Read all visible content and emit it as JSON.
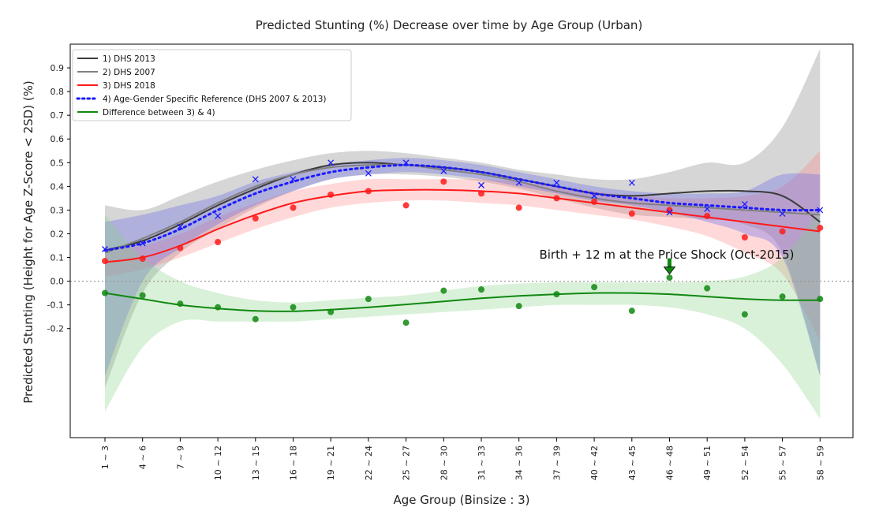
{
  "chart_data": {
    "type": "line",
    "title": "Predicted Stunting (%) Decrease over time by Age Group (Urban)",
    "xlabel": "Age Group (Binsize : 3)",
    "ylabel": "Predicted Stunting (Height for Age Z-Score < 2SD) (%)",
    "categories": [
      "1 ~ 3",
      "4 ~ 6",
      "7 ~ 9",
      "10 ~ 12",
      "13 ~ 15",
      "16 ~ 18",
      "19 ~ 21",
      "22 ~ 24",
      "25 ~ 27",
      "28 ~ 30",
      "31 ~ 33",
      "34 ~ 36",
      "37 ~ 39",
      "40 ~ 42",
      "43 ~ 45",
      "46 ~ 48",
      "49 ~ 51",
      "52 ~ 54",
      "55 ~ 57",
      "58 ~ 59"
    ],
    "yticks": [
      "0.9",
      "0.8",
      "0.7",
      "0.6",
      "0.5",
      "0.4",
      "0.3",
      "0.2",
      "0.1",
      "0.0",
      "-0.1",
      "-0.2"
    ],
    "ytick_values": [
      0.9,
      0.8,
      0.7,
      0.6,
      0.5,
      0.4,
      0.3,
      0.2,
      0.1,
      0.0,
      -0.1,
      -0.2
    ],
    "ylim": [
      -0.66,
      1.0
    ],
    "grid": false,
    "legend_position": "top-left",
    "reference_line": {
      "y": 0.0,
      "style": "dotted",
      "color": "#999999"
    },
    "series": [
      {
        "name": "1) DHS 2013",
        "color": "#3a3a3a",
        "style": "solid",
        "width": 2,
        "values": [
          0.13,
          0.17,
          0.24,
          0.32,
          0.39,
          0.45,
          0.49,
          0.5,
          0.49,
          0.48,
          0.46,
          0.43,
          0.4,
          0.37,
          0.36,
          0.37,
          0.38,
          0.38,
          0.36,
          0.25
        ],
        "band_color": "#8a8a8a",
        "band_opacity": 0.35,
        "band_lower": [
          -0.45,
          -0.05,
          0.12,
          0.22,
          0.31,
          0.38,
          0.43,
          0.45,
          0.45,
          0.44,
          0.42,
          0.39,
          0.35,
          0.31,
          0.28,
          0.27,
          0.26,
          0.24,
          0.12,
          -0.4
        ],
        "band_upper": [
          0.32,
          0.3,
          0.36,
          0.42,
          0.47,
          0.51,
          0.54,
          0.55,
          0.54,
          0.52,
          0.5,
          0.47,
          0.45,
          0.43,
          0.43,
          0.46,
          0.5,
          0.5,
          0.65,
          0.98
        ]
      },
      {
        "name": "2) DHS 2007",
        "color": "#808080",
        "style": "solid",
        "width": 2,
        "values": [
          0.12,
          0.18,
          0.25,
          0.33,
          0.4,
          0.45,
          0.48,
          0.49,
          0.49,
          0.47,
          0.45,
          0.42,
          0.38,
          0.35,
          0.33,
          0.32,
          0.31,
          0.3,
          0.29,
          0.28
        ]
      },
      {
        "name": "3) DHS 2018",
        "color": "#ff1a1a",
        "style": "solid",
        "width": 2,
        "values": [
          0.08,
          0.1,
          0.15,
          0.22,
          0.28,
          0.33,
          0.36,
          0.38,
          0.385,
          0.385,
          0.38,
          0.37,
          0.35,
          0.33,
          0.31,
          0.29,
          0.27,
          0.25,
          0.23,
          0.21
        ],
        "band_color": "#ff8080",
        "band_opacity": 0.3,
        "band_lower": [
          0.02,
          0.05,
          0.1,
          0.16,
          0.22,
          0.27,
          0.31,
          0.33,
          0.34,
          0.34,
          0.33,
          0.32,
          0.3,
          0.28,
          0.26,
          0.23,
          0.19,
          0.12,
          0.03,
          -0.25
        ],
        "band_upper": [
          0.14,
          0.15,
          0.2,
          0.27,
          0.33,
          0.38,
          0.41,
          0.43,
          0.43,
          0.43,
          0.43,
          0.42,
          0.4,
          0.38,
          0.36,
          0.35,
          0.35,
          0.36,
          0.4,
          0.55
        ],
        "points": [
          0.085,
          0.095,
          0.14,
          0.165,
          0.265,
          0.31,
          0.365,
          0.38,
          0.32,
          0.42,
          0.37,
          0.31,
          0.35,
          0.335,
          0.285,
          0.3,
          0.275,
          0.185,
          0.21,
          0.225
        ]
      },
      {
        "name": "4) Age-Gender Specific Reference (DHS 2007 & 2013)",
        "color": "#1a1aff",
        "style": "dotted",
        "width": 3,
        "values": [
          0.13,
          0.16,
          0.22,
          0.3,
          0.37,
          0.42,
          0.46,
          0.48,
          0.49,
          0.48,
          0.46,
          0.43,
          0.4,
          0.37,
          0.35,
          0.33,
          0.32,
          0.31,
          0.3,
          0.3
        ],
        "band_color": "#6a6ae8",
        "band_opacity": 0.35,
        "band_lower": [
          -0.4,
          0.0,
          0.14,
          0.24,
          0.32,
          0.38,
          0.43,
          0.45,
          0.46,
          0.45,
          0.43,
          0.4,
          0.37,
          0.34,
          0.32,
          0.29,
          0.25,
          0.2,
          0.1,
          -0.4
        ],
        "band_upper": [
          0.25,
          0.28,
          0.32,
          0.36,
          0.42,
          0.46,
          0.49,
          0.51,
          0.52,
          0.51,
          0.49,
          0.46,
          0.43,
          0.4,
          0.38,
          0.37,
          0.37,
          0.38,
          0.45,
          0.45
        ],
        "points": [
          0.135,
          0.16,
          0.23,
          0.275,
          0.43,
          0.43,
          0.5,
          0.455,
          0.5,
          0.465,
          0.405,
          0.415,
          0.415,
          0.36,
          0.415,
          0.29,
          0.305,
          0.325,
          0.285,
          0.3
        ]
      },
      {
        "name": "Difference between 3) & 4)",
        "color": "#118811",
        "style": "solid",
        "width": 2,
        "values": [
          -0.05,
          -0.075,
          -0.1,
          -0.115,
          -0.125,
          -0.127,
          -0.12,
          -0.11,
          -0.098,
          -0.085,
          -0.072,
          -0.062,
          -0.055,
          -0.05,
          -0.05,
          -0.055,
          -0.065,
          -0.075,
          -0.08,
          -0.08
        ],
        "band_color": "#80d080",
        "band_opacity": 0.3,
        "band_lower": [
          -0.55,
          -0.28,
          -0.17,
          -0.17,
          -0.17,
          -0.17,
          -0.16,
          -0.15,
          -0.14,
          -0.13,
          -0.12,
          -0.11,
          -0.1,
          -0.1,
          -0.1,
          -0.11,
          -0.14,
          -0.2,
          -0.35,
          -0.58
        ],
        "band_upper": [
          0.28,
          0.1,
          0.0,
          -0.05,
          -0.08,
          -0.09,
          -0.08,
          -0.07,
          -0.06,
          -0.04,
          -0.02,
          -0.01,
          -0.005,
          -0.005,
          -0.005,
          -0.005,
          0.0,
          0.02,
          0.1,
          0.3
        ],
        "points": [
          -0.05,
          -0.06,
          -0.095,
          -0.11,
          -0.16,
          -0.11,
          -0.13,
          -0.075,
          -0.175,
          -0.04,
          -0.035,
          -0.105,
          -0.055,
          -0.025,
          -0.125,
          0.015,
          -0.03,
          -0.14,
          -0.065,
          -0.075
        ]
      }
    ],
    "annotation": {
      "text": "Birth + 12 m at the Price Shock (Oct-2015)",
      "arrow_category": "46 ~ 48",
      "arrow_color": "#118811"
    }
  }
}
